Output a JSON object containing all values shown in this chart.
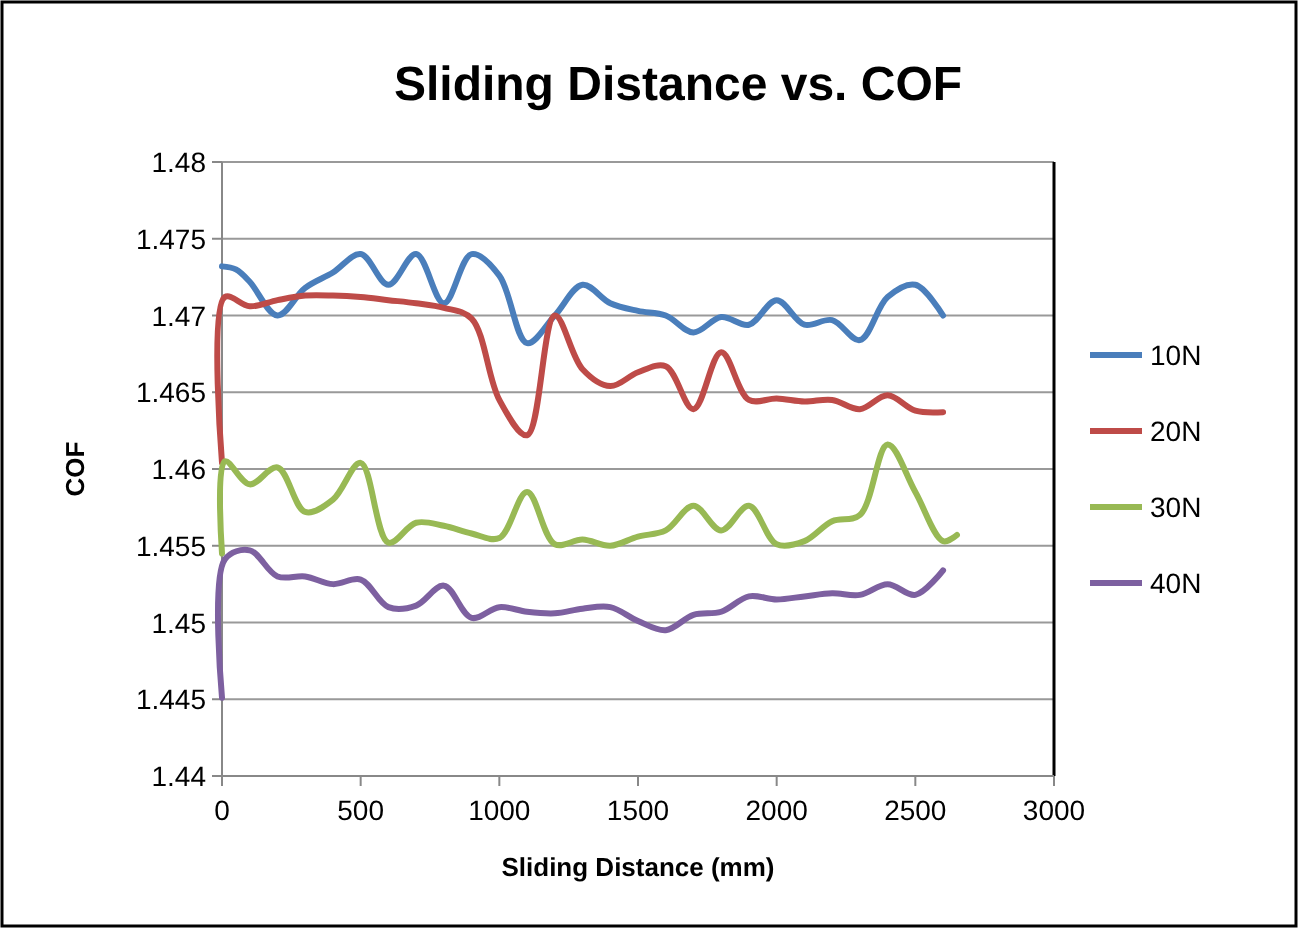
{
  "chart_data": {
    "type": "line",
    "title": "Sliding Distance vs. COF",
    "xlabel": "Sliding Distance (mm)",
    "ylabel": "COF",
    "xlim": [
      0,
      3000
    ],
    "xticks": [
      0,
      500,
      1000,
      1500,
      2000,
      2500,
      3000
    ],
    "ylim": [
      1.44,
      1.48
    ],
    "yticks": [
      1.44,
      1.445,
      1.45,
      1.455,
      1.46,
      1.465,
      1.47,
      1.475,
      1.48
    ],
    "grid": "y",
    "legend": "right",
    "marker": "none",
    "line_style": "solid",
    "series": [
      {
        "name": "10N",
        "color": "#4a7ebb",
        "x": [
          0,
          50,
          100,
          200,
          300,
          400,
          500,
          600,
          700,
          800,
          900,
          1000,
          1100,
          1200,
          1300,
          1400,
          1500,
          1600,
          1700,
          1800,
          1900,
          2000,
          2100,
          2200,
          2300,
          2400,
          2500,
          2600
        ],
        "values": [
          1.4732,
          1.473,
          1.4722,
          1.47,
          1.4718,
          1.4728,
          1.474,
          1.472,
          1.474,
          1.4708,
          1.474,
          1.4726,
          1.4682,
          1.47,
          1.472,
          1.4708,
          1.4703,
          1.47,
          1.4689,
          1.4699,
          1.4694,
          1.471,
          1.4694,
          1.4697,
          1.4684,
          1.4712,
          1.472,
          1.47
        ]
      },
      {
        "name": "20N",
        "color": "#be4b48",
        "x": [
          0,
          10,
          100,
          200,
          300,
          400,
          500,
          600,
          700,
          800,
          900,
          1000,
          1100,
          1200,
          1300,
          1400,
          1500,
          1600,
          1700,
          1800,
          1900,
          2000,
          2100,
          2200,
          2300,
          2400,
          2500,
          2600
        ],
        "values": [
          1.4604,
          1.4712,
          1.4706,
          1.471,
          1.4713,
          1.4713,
          1.4712,
          1.471,
          1.4708,
          1.4705,
          1.4698,
          1.4645,
          1.4622,
          1.47,
          1.4665,
          1.4654,
          1.4663,
          1.4667,
          1.4639,
          1.4676,
          1.4645,
          1.4646,
          1.4644,
          1.4645,
          1.4639,
          1.4648,
          1.4638,
          1.4637
        ]
      },
      {
        "name": "30N",
        "color": "#98b954",
        "x": [
          0,
          10,
          100,
          200,
          300,
          400,
          500,
          600,
          700,
          800,
          900,
          1000,
          1100,
          1200,
          1300,
          1400,
          1500,
          1600,
          1700,
          1800,
          1900,
          2000,
          2100,
          2200,
          2300,
          2400,
          2500,
          2600,
          2650
        ],
        "values": [
          1.4545,
          1.4605,
          1.459,
          1.4601,
          1.4572,
          1.458,
          1.4604,
          1.4552,
          1.4565,
          1.4563,
          1.4558,
          1.4555,
          1.4585,
          1.4551,
          1.4554,
          1.455,
          1.4556,
          1.456,
          1.4576,
          1.456,
          1.4576,
          1.4551,
          1.4553,
          1.4566,
          1.457,
          1.4616,
          1.4585,
          1.4553,
          1.4557
        ]
      },
      {
        "name": "40N",
        "color": "#7d60a0",
        "x": [
          0,
          10,
          100,
          200,
          300,
          400,
          500,
          600,
          700,
          800,
          900,
          1000,
          1100,
          1200,
          1300,
          1400,
          1500,
          1600,
          1700,
          1800,
          1900,
          2000,
          2100,
          2200,
          2300,
          2400,
          2500,
          2600
        ],
        "values": [
          1.4451,
          1.4541,
          1.4547,
          1.453,
          1.453,
          1.4525,
          1.4528,
          1.451,
          1.4511,
          1.4524,
          1.4503,
          1.451,
          1.4507,
          1.4506,
          1.4509,
          1.451,
          1.4501,
          1.4495,
          1.4505,
          1.4507,
          1.4517,
          1.4515,
          1.4517,
          1.4519,
          1.4518,
          1.4525,
          1.4518,
          1.4534
        ]
      }
    ]
  }
}
